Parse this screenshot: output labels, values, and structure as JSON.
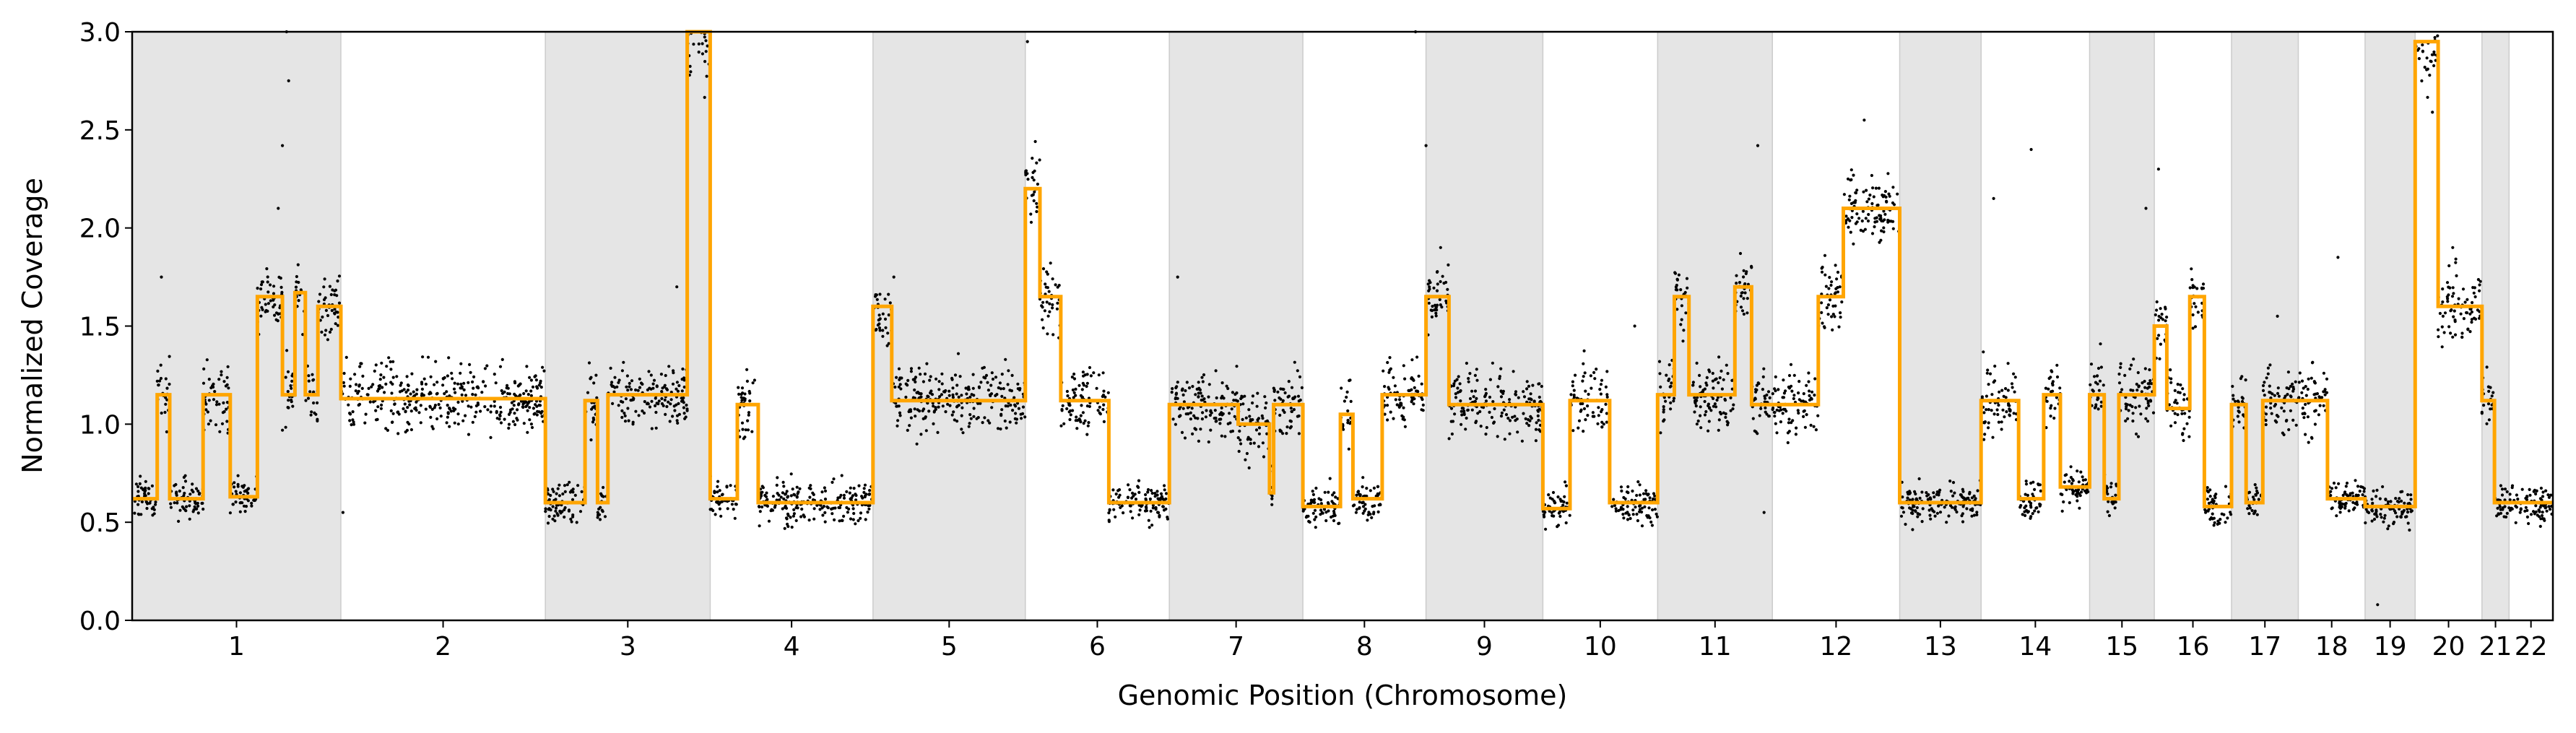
{
  "chart_data": {
    "type": "scatter",
    "xlabel": "Genomic Position (Chromosome)",
    "ylabel": "Normalized Coverage",
    "ylim": [
      0.0,
      3.0
    ],
    "yticks": [
      "0.0",
      "0.5",
      "1.0",
      "1.5",
      "2.0",
      "2.5",
      "3.0"
    ],
    "grid": false,
    "colors": {
      "points": "#000000",
      "segments": "#FFA500",
      "band": "#e5e5e5"
    },
    "chromosomes": [
      {
        "label": "1",
        "start": 0.0,
        "end": 1.0,
        "shaded": true
      },
      {
        "label": "2",
        "start": 1.0,
        "end": 1.98,
        "shaded": false
      },
      {
        "label": "3",
        "start": 1.98,
        "end": 2.77,
        "shaded": true
      },
      {
        "label": "4",
        "start": 2.77,
        "end": 3.55,
        "shaded": false
      },
      {
        "label": "5",
        "start": 3.55,
        "end": 4.28,
        "shaded": true
      },
      {
        "label": "6",
        "start": 4.28,
        "end": 4.97,
        "shaded": false
      },
      {
        "label": "7",
        "start": 4.97,
        "end": 5.61,
        "shaded": true
      },
      {
        "label": "8",
        "start": 5.61,
        "end": 6.2,
        "shaded": false
      },
      {
        "label": "9",
        "start": 6.2,
        "end": 6.76,
        "shaded": true
      },
      {
        "label": "10",
        "start": 6.76,
        "end": 7.31,
        "shaded": false
      },
      {
        "label": "11",
        "start": 7.31,
        "end": 7.86,
        "shaded": true
      },
      {
        "label": "12",
        "start": 7.86,
        "end": 8.47,
        "shaded": false
      },
      {
        "label": "13",
        "start": 8.47,
        "end": 8.86,
        "shaded": true
      },
      {
        "label": "14",
        "start": 8.86,
        "end": 9.38,
        "shaded": false
      },
      {
        "label": "15",
        "start": 9.38,
        "end": 9.69,
        "shaded": true
      },
      {
        "label": "16",
        "start": 9.69,
        "end": 10.06,
        "shaded": false
      },
      {
        "label": "17",
        "start": 10.06,
        "end": 10.38,
        "shaded": true
      },
      {
        "label": "18",
        "start": 10.38,
        "end": 10.7,
        "shaded": false
      },
      {
        "label": "19",
        "start": 10.7,
        "end": 10.94,
        "shaded": true
      },
      {
        "label": "20",
        "start": 10.94,
        "end": 11.26,
        "shaded": false
      },
      {
        "label": "21",
        "start": 11.26,
        "end": 11.39,
        "shaded": true
      },
      {
        "label": "22",
        "start": 11.39,
        "end": 11.6,
        "shaded": false
      }
    ],
    "segments": [
      [
        0.0,
        0.12,
        0.62
      ],
      [
        0.12,
        0.18,
        1.15
      ],
      [
        0.18,
        0.34,
        0.62
      ],
      [
        0.34,
        0.47,
        1.15
      ],
      [
        0.47,
        0.6,
        0.63
      ],
      [
        0.6,
        0.72,
        1.65
      ],
      [
        0.72,
        0.78,
        1.15
      ],
      [
        0.78,
        0.83,
        1.67
      ],
      [
        0.83,
        0.89,
        1.15
      ],
      [
        0.89,
        1.0,
        1.6
      ],
      [
        1.0,
        1.98,
        1.13
      ],
      [
        1.98,
        2.17,
        0.6
      ],
      [
        2.17,
        2.23,
        1.12
      ],
      [
        2.23,
        2.28,
        0.6
      ],
      [
        2.28,
        2.66,
        1.15
      ],
      [
        2.66,
        2.77,
        3.0
      ],
      [
        2.77,
        2.9,
        0.62
      ],
      [
        2.9,
        3.0,
        1.1
      ],
      [
        3.0,
        3.55,
        0.6
      ],
      [
        3.55,
        3.64,
        1.6
      ],
      [
        3.64,
        4.28,
        1.12
      ],
      [
        4.28,
        4.35,
        2.2
      ],
      [
        4.35,
        4.45,
        1.65
      ],
      [
        4.45,
        4.68,
        1.12
      ],
      [
        4.68,
        4.97,
        0.6
      ],
      [
        4.97,
        5.3,
        1.1
      ],
      [
        5.3,
        5.45,
        1.0
      ],
      [
        5.45,
        5.47,
        0.65
      ],
      [
        5.47,
        5.61,
        1.1
      ],
      [
        5.61,
        5.79,
        0.58
      ],
      [
        5.79,
        5.85,
        1.05
      ],
      [
        5.85,
        5.99,
        0.62
      ],
      [
        5.99,
        6.2,
        1.15
      ],
      [
        6.2,
        6.31,
        1.65
      ],
      [
        6.31,
        6.76,
        1.1
      ],
      [
        6.76,
        6.89,
        0.57
      ],
      [
        6.89,
        7.08,
        1.12
      ],
      [
        7.08,
        7.31,
        0.6
      ],
      [
        7.31,
        7.39,
        1.15
      ],
      [
        7.39,
        7.46,
        1.65
      ],
      [
        7.46,
        7.68,
        1.15
      ],
      [
        7.68,
        7.76,
        1.7
      ],
      [
        7.76,
        7.86,
        1.1
      ],
      [
        7.86,
        8.08,
        1.1
      ],
      [
        8.08,
        8.2,
        1.65
      ],
      [
        8.2,
        8.32,
        2.1
      ],
      [
        8.32,
        8.47,
        2.1
      ],
      [
        8.47,
        8.86,
        0.6
      ],
      [
        8.86,
        9.04,
        1.12
      ],
      [
        9.04,
        9.16,
        0.62
      ],
      [
        9.16,
        9.24,
        1.15
      ],
      [
        9.24,
        9.38,
        0.68
      ],
      [
        9.38,
        9.45,
        1.15
      ],
      [
        9.45,
        9.52,
        0.62
      ],
      [
        9.52,
        9.69,
        1.15
      ],
      [
        9.69,
        9.75,
        1.5
      ],
      [
        9.75,
        9.86,
        1.08
      ],
      [
        9.86,
        9.93,
        1.65
      ],
      [
        9.93,
        10.06,
        0.58
      ],
      [
        10.06,
        10.13,
        1.1
      ],
      [
        10.13,
        10.21,
        0.6
      ],
      [
        10.21,
        10.38,
        1.12
      ],
      [
        10.38,
        10.52,
        1.12
      ],
      [
        10.52,
        10.7,
        0.62
      ],
      [
        10.7,
        10.94,
        0.58
      ],
      [
        10.94,
        11.05,
        2.95
      ],
      [
        11.05,
        11.26,
        1.6
      ],
      [
        11.26,
        11.32,
        1.12
      ],
      [
        11.32,
        11.39,
        0.6
      ],
      [
        11.39,
        11.6,
        0.6
      ]
    ],
    "outliers": [
      [
        0.14,
        1.75
      ],
      [
        0.7,
        2.1
      ],
      [
        0.72,
        2.42
      ],
      [
        0.74,
        3.0
      ],
      [
        0.75,
        2.75
      ],
      [
        1.01,
        0.55
      ],
      [
        2.61,
        1.7
      ],
      [
        2.72,
        3.0
      ],
      [
        2.75,
        2.9
      ],
      [
        3.65,
        1.75
      ],
      [
        4.29,
        2.95
      ],
      [
        5.01,
        1.75
      ],
      [
        6.15,
        3.0
      ],
      [
        6.2,
        2.42
      ],
      [
        6.27,
        1.9
      ],
      [
        7.2,
        1.5
      ],
      [
        7.79,
        2.42
      ],
      [
        7.82,
        0.55
      ],
      [
        8.1,
        1.8
      ],
      [
        8.3,
        2.55
      ],
      [
        8.92,
        2.15
      ],
      [
        9.1,
        2.4
      ],
      [
        9.65,
        2.1
      ],
      [
        9.71,
        2.3
      ],
      [
        10.28,
        1.55
      ],
      [
        10.57,
        1.85
      ],
      [
        10.76,
        0.08
      ],
      [
        11.12,
        1.9
      ]
    ]
  }
}
